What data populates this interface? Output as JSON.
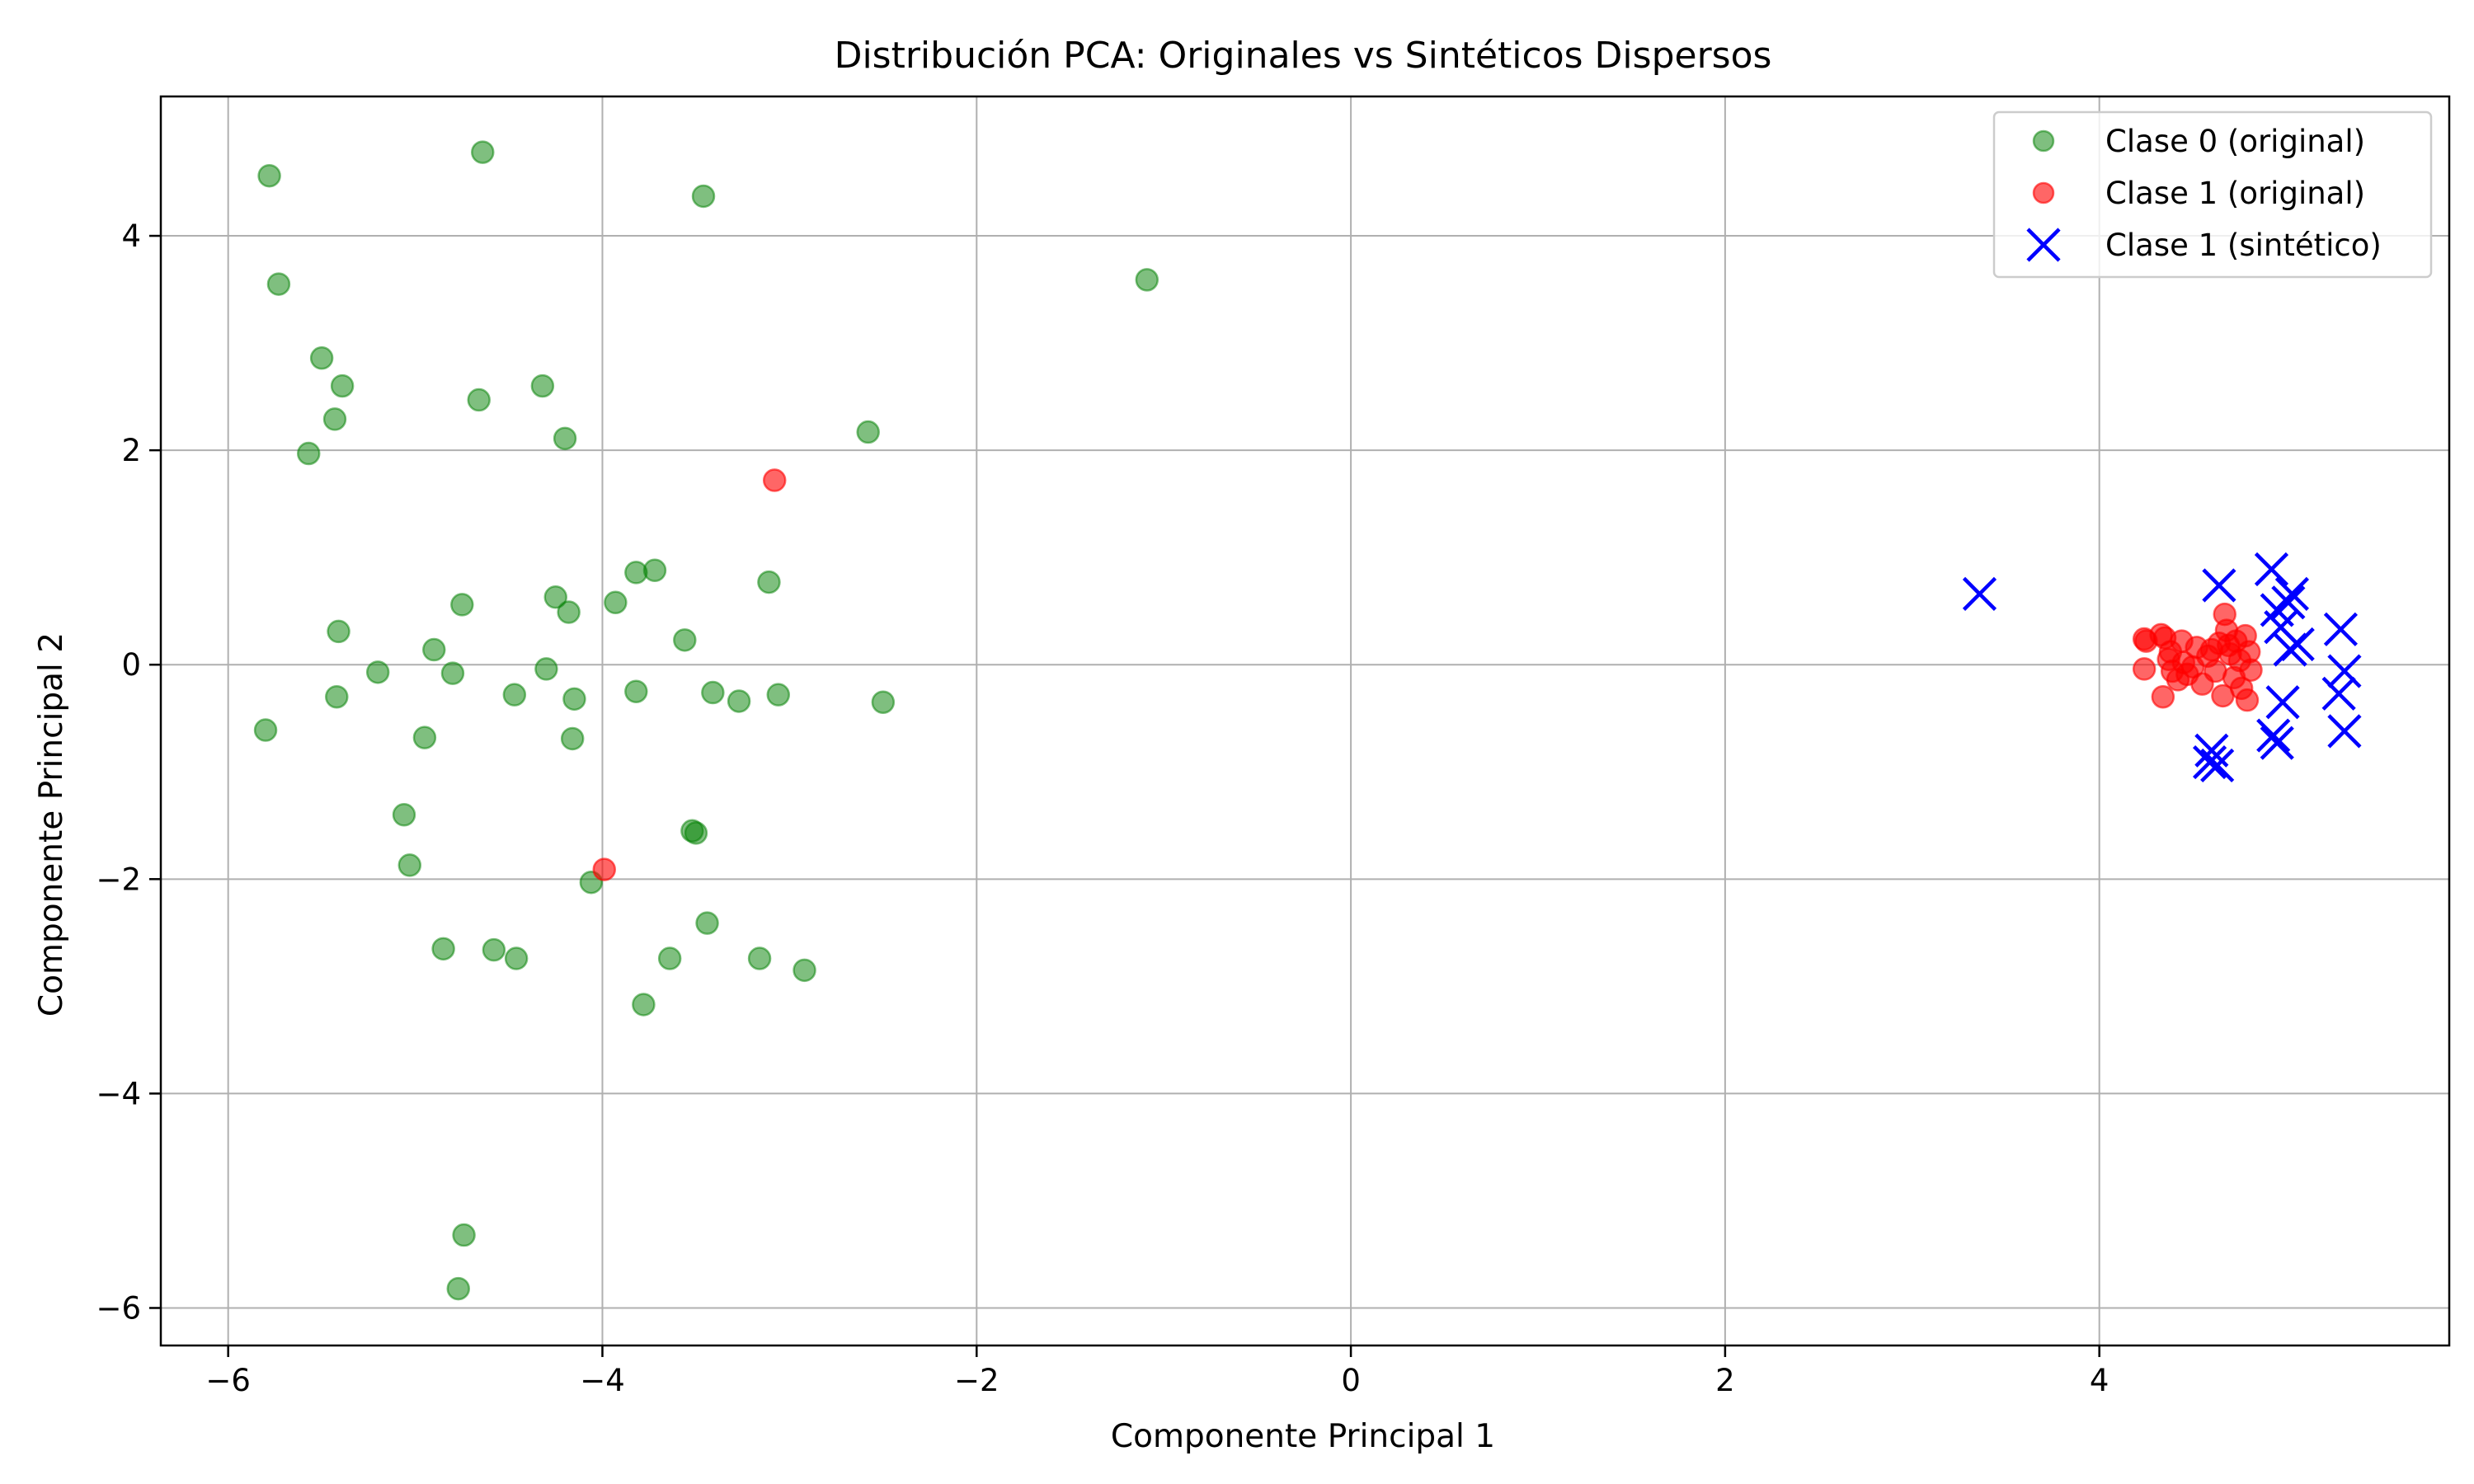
{
  "chart_data": {
    "type": "scatter",
    "title": "Distribución PCA: Originales vs Sintéticos Dispersos",
    "xlabel": "Componente Principal 1",
    "ylabel": "Componente Principal 2",
    "xlim": [
      -6.36,
      5.87
    ],
    "ylim": [
      -6.35,
      5.3
    ],
    "xticks": [
      -6,
      -4,
      -2,
      0,
      2,
      4
    ],
    "yticks": [
      -6,
      -4,
      -2,
      0,
      2,
      4
    ],
    "xtick_labels": [
      "−6",
      "−4",
      "−2",
      "0",
      "2",
      "4"
    ],
    "ytick_labels": [
      "−6",
      "−4",
      "−2",
      "0",
      "2",
      "4"
    ],
    "grid": true,
    "legend_position": "top-right",
    "series": [
      {
        "name": "Clase 0 (original)",
        "marker": "circle",
        "color": "#008000",
        "alpha": 0.5,
        "points": [
          [
            -5.78,
            4.56
          ],
          [
            -4.64,
            4.78
          ],
          [
            -3.46,
            4.37
          ],
          [
            -5.73,
            3.55
          ],
          [
            -1.09,
            3.59
          ],
          [
            -5.5,
            2.86
          ],
          [
            -5.39,
            2.6
          ],
          [
            -4.66,
            2.47
          ],
          [
            -4.32,
            2.6
          ],
          [
            -5.43,
            2.29
          ],
          [
            -4.2,
            2.11
          ],
          [
            -2.58,
            2.17
          ],
          [
            -5.57,
            1.97
          ],
          [
            -3.82,
            0.86
          ],
          [
            -3.72,
            0.88
          ],
          [
            -3.11,
            0.77
          ],
          [
            -4.25,
            0.63
          ],
          [
            -4.75,
            0.56
          ],
          [
            -4.18,
            0.49
          ],
          [
            -3.93,
            0.58
          ],
          [
            -5.41,
            0.31
          ],
          [
            -3.56,
            0.23
          ],
          [
            -4.9,
            0.14
          ],
          [
            -5.2,
            -0.07
          ],
          [
            -4.8,
            -0.08
          ],
          [
            -4.3,
            -0.04
          ],
          [
            -5.42,
            -0.3
          ],
          [
            -4.47,
            -0.28
          ],
          [
            -4.15,
            -0.32
          ],
          [
            -3.82,
            -0.25
          ],
          [
            -3.41,
            -0.26
          ],
          [
            -3.27,
            -0.34
          ],
          [
            -3.06,
            -0.28
          ],
          [
            -2.5,
            -0.35
          ],
          [
            -5.8,
            -0.61
          ],
          [
            -4.95,
            -0.68
          ],
          [
            -4.16,
            -0.69
          ],
          [
            -5.06,
            -1.4
          ],
          [
            -5.03,
            -1.87
          ],
          [
            -3.52,
            -1.55
          ],
          [
            -3.5,
            -1.57
          ],
          [
            -4.06,
            -2.03
          ],
          [
            -3.44,
            -2.41
          ],
          [
            -4.85,
            -2.65
          ],
          [
            -4.58,
            -2.66
          ],
          [
            -4.46,
            -2.74
          ],
          [
            -3.64,
            -2.74
          ],
          [
            -3.16,
            -2.74
          ],
          [
            -2.92,
            -2.85
          ],
          [
            -3.78,
            -3.17
          ],
          [
            -4.74,
            -5.32
          ],
          [
            -4.77,
            -5.82
          ]
        ]
      },
      {
        "name": "Clase 1 (original)",
        "marker": "circle",
        "color": "#ff0000",
        "alpha": 0.6,
        "points": [
          [
            -3.08,
            1.72
          ],
          [
            -3.99,
            -1.91
          ],
          [
            4.24,
            0.24
          ],
          [
            4.25,
            0.22
          ],
          [
            4.24,
            -0.04
          ],
          [
            4.33,
            0.28
          ],
          [
            4.35,
            0.25
          ],
          [
            4.34,
            -0.3
          ],
          [
            4.37,
            0.05
          ],
          [
            4.38,
            0.12
          ],
          [
            4.39,
            -0.06
          ],
          [
            4.42,
            -0.14
          ],
          [
            4.44,
            0.22
          ],
          [
            4.45,
            0.02
          ],
          [
            4.47,
            -0.09
          ],
          [
            4.5,
            -0.02
          ],
          [
            4.52,
            0.16
          ],
          [
            4.55,
            -0.18
          ],
          [
            4.58,
            0.08
          ],
          [
            4.6,
            0.14
          ],
          [
            4.62,
            -0.06
          ],
          [
            4.64,
            0.2
          ],
          [
            4.66,
            -0.29
          ],
          [
            4.67,
            0.47
          ],
          [
            4.68,
            0.32
          ],
          [
            4.7,
            0.1
          ],
          [
            4.72,
            -0.12
          ],
          [
            4.73,
            0.22
          ],
          [
            4.75,
            0.04
          ],
          [
            4.76,
            -0.22
          ],
          [
            4.78,
            0.27
          ],
          [
            4.79,
            -0.33
          ],
          [
            4.8,
            0.12
          ],
          [
            4.81,
            -0.05
          ],
          [
            4.69,
            0.18
          ]
        ]
      },
      {
        "name": "Clase 1 (sintético)",
        "marker": "x",
        "color": "#0000ff",
        "alpha": 1,
        "points": [
          [
            3.36,
            0.66
          ],
          [
            4.64,
            0.74
          ],
          [
            4.92,
            0.89
          ],
          [
            5.03,
            0.66
          ],
          [
            5.01,
            0.58
          ],
          [
            4.95,
            0.51
          ],
          [
            4.97,
            0.35
          ],
          [
            5.06,
            0.19
          ],
          [
            5.02,
            0.14
          ],
          [
            5.29,
            0.33
          ],
          [
            5.31,
            -0.06
          ],
          [
            5.28,
            -0.27
          ],
          [
            4.98,
            -0.35
          ],
          [
            5.31,
            -0.62
          ],
          [
            4.93,
            -0.66
          ],
          [
            4.95,
            -0.73
          ],
          [
            4.6,
            -0.8
          ],
          [
            4.59,
            -0.91
          ],
          [
            4.63,
            -0.94
          ]
        ]
      }
    ]
  }
}
